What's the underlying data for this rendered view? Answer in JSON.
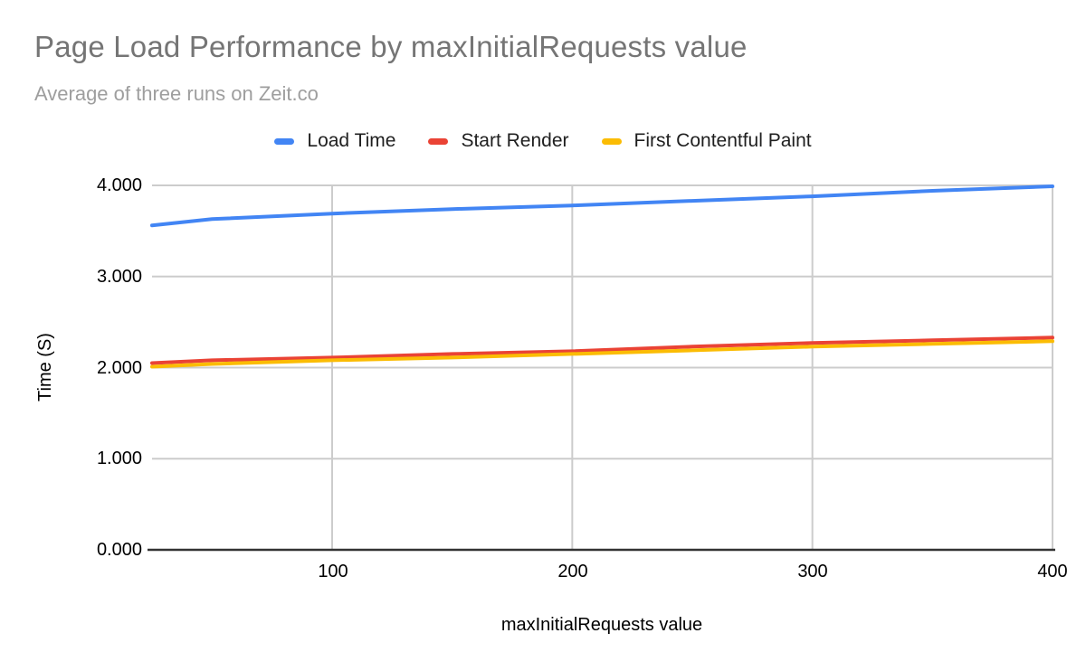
{
  "title": "Page Load Performance by maxInitialRequests value",
  "subtitle": "Average of three runs on Zeit.co",
  "colors": {
    "title_text": "#757575",
    "subtitle_text": "#9e9e9e",
    "axis_text": "#000000",
    "gridline": "#cccccc",
    "baseline": "#333333",
    "background": "#ffffff"
  },
  "chart_data": {
    "type": "line",
    "title": "Page Load Performance by maxInitialRequests value",
    "subtitle": "Average of three runs on Zeit.co",
    "xlabel": "maxInitialRequests value",
    "ylabel": "Time (S)",
    "legend_position": "top",
    "grid": true,
    "xlim": [
      25,
      400
    ],
    "ylim": [
      0,
      4
    ],
    "x_ticks": [
      100,
      200,
      300,
      400
    ],
    "y_ticks": [
      "0.000",
      "1.000",
      "2.000",
      "3.000",
      "4.000"
    ],
    "y_tick_values": [
      0,
      1,
      2,
      3,
      4
    ],
    "x": [
      25,
      50,
      100,
      150,
      200,
      250,
      300,
      350,
      400
    ],
    "series": [
      {
        "name": "Load Time",
        "color": "#4285f4",
        "values": [
          3.56,
          3.63,
          3.69,
          3.74,
          3.78,
          3.83,
          3.88,
          3.94,
          3.99
        ]
      },
      {
        "name": "Start Render",
        "color": "#ea4335",
        "values": [
          2.05,
          2.08,
          2.11,
          2.15,
          2.18,
          2.23,
          2.27,
          2.3,
          2.33
        ]
      },
      {
        "name": "First Contentful Paint",
        "color": "#fbbc04",
        "values": [
          2.01,
          2.04,
          2.08,
          2.11,
          2.15,
          2.19,
          2.23,
          2.26,
          2.29
        ]
      }
    ]
  }
}
